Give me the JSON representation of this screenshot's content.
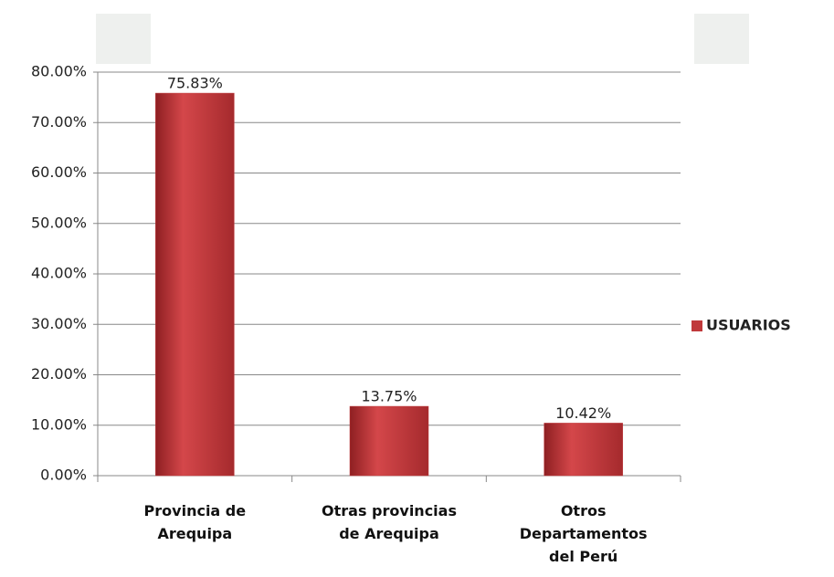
{
  "chart_data": {
    "type": "bar",
    "categories": [
      "Provincia de Arequipa",
      "Otras provincias de Arequipa",
      "Otros Departamentos del Perú"
    ],
    "series": [
      {
        "name": "USUARIOS",
        "color": "#c0393b",
        "values": [
          75.83,
          13.75,
          10.42
        ],
        "value_labels": [
          "75.83%",
          "13.75%",
          "10.42%"
        ]
      }
    ],
    "ylim": [
      0,
      80
    ],
    "yticks": [
      {
        "value": 0,
        "label": "0.00%"
      },
      {
        "value": 10,
        "label": "10.00%"
      },
      {
        "value": 20,
        "label": "20.00%"
      },
      {
        "value": 30,
        "label": "30.00%"
      },
      {
        "value": 40,
        "label": "40.00%"
      },
      {
        "value": 50,
        "label": "50.00%"
      },
      {
        "value": 60,
        "label": "60.00%"
      },
      {
        "value": 70,
        "label": "70.00%"
      },
      {
        "value": 80,
        "label": "80.00%"
      }
    ],
    "grid": true,
    "legend": "right"
  }
}
